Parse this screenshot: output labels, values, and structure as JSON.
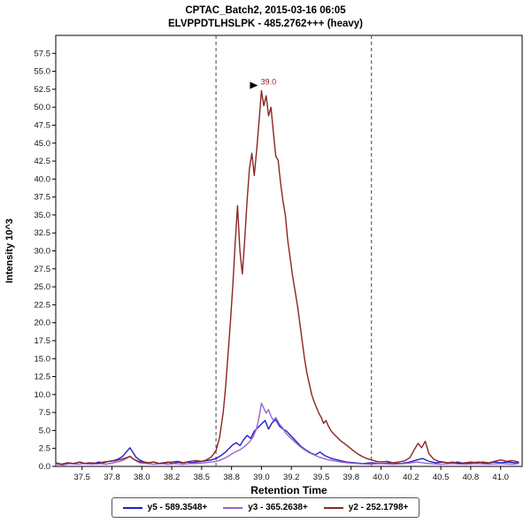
{
  "chart_data": {
    "type": "line",
    "title": "CPTAC_Batch2, 2015-03-16 06:05",
    "subtitle": "ELVPPDTLHSLPK - 485.2762+++ (heavy)",
    "xlabel": "Retention Time",
    "ylabel": "Intensity 10^3",
    "xlim": [
      37.28,
      41.18
    ],
    "ylim": [
      0,
      60
    ],
    "grid": false,
    "legend_position": "bottom",
    "y_ticks": {
      "min": 0.0,
      "max": 57.5,
      "step": 2.5
    },
    "x_ticks": [
      {
        "v": 37.5,
        "label": "37.5"
      },
      {
        "v": 37.75,
        "label": "37.8"
      },
      {
        "v": 38.0,
        "label": "38.0"
      },
      {
        "v": 38.25,
        "label": "38.2"
      },
      {
        "v": 38.5,
        "label": "38.5"
      },
      {
        "v": 38.75,
        "label": "38.8"
      },
      {
        "v": 39.0,
        "label": "39.0"
      },
      {
        "v": 39.25,
        "label": "39.2"
      },
      {
        "v": 39.5,
        "label": "39.5"
      },
      {
        "v": 39.75,
        "label": "39.8"
      },
      {
        "v": 40.0,
        "label": "40.0"
      },
      {
        "v": 40.25,
        "label": "40.2"
      },
      {
        "v": 40.5,
        "label": "40.5"
      },
      {
        "v": 40.75,
        "label": "40.8"
      },
      {
        "v": 41.0,
        "label": "41.0"
      }
    ],
    "integration_boundaries": [
      38.62,
      39.92
    ],
    "peak_annotation": {
      "x": 39.0,
      "y": 52.3,
      "label": "39.0",
      "color": "#8b2323"
    },
    "series": [
      {
        "name": "y5",
        "label": "y5 - 589.3548+",
        "color": "#2121cc",
        "points": [
          [
            37.28,
            0.4
          ],
          [
            37.33,
            0.3
          ],
          [
            37.38,
            0.5
          ],
          [
            37.43,
            0.4
          ],
          [
            37.48,
            0.6
          ],
          [
            37.52,
            0.4
          ],
          [
            37.56,
            0.5
          ],
          [
            37.6,
            0.4
          ],
          [
            37.64,
            0.6
          ],
          [
            37.68,
            0.5
          ],
          [
            37.72,
            0.7
          ],
          [
            37.76,
            0.8
          ],
          [
            37.8,
            1.0
          ],
          [
            37.84,
            1.4
          ],
          [
            37.87,
            2.0
          ],
          [
            37.9,
            2.6
          ],
          [
            37.92,
            2.1
          ],
          [
            37.95,
            1.3
          ],
          [
            37.98,
            0.9
          ],
          [
            38.02,
            0.6
          ],
          [
            38.06,
            0.5
          ],
          [
            38.1,
            0.6
          ],
          [
            38.14,
            0.4
          ],
          [
            38.18,
            0.5
          ],
          [
            38.22,
            0.6
          ],
          [
            38.26,
            0.4
          ],
          [
            38.3,
            0.6
          ],
          [
            38.34,
            0.5
          ],
          [
            38.38,
            0.6
          ],
          [
            38.42,
            0.5
          ],
          [
            38.46,
            0.6
          ],
          [
            38.5,
            0.7
          ],
          [
            38.54,
            0.8
          ],
          [
            38.58,
            0.9
          ],
          [
            38.62,
            1.1
          ],
          [
            38.66,
            1.5
          ],
          [
            38.7,
            2.0
          ],
          [
            38.73,
            2.5
          ],
          [
            38.76,
            3.0
          ],
          [
            38.79,
            3.3
          ],
          [
            38.82,
            2.9
          ],
          [
            38.85,
            3.7
          ],
          [
            38.88,
            4.3
          ],
          [
            38.91,
            3.9
          ],
          [
            38.94,
            4.9
          ],
          [
            38.97,
            5.4
          ],
          [
            39.0,
            5.9
          ],
          [
            39.03,
            6.4
          ],
          [
            39.06,
            5.2
          ],
          [
            39.09,
            6.1
          ],
          [
            39.12,
            6.5
          ],
          [
            39.15,
            5.6
          ],
          [
            39.18,
            5.2
          ],
          [
            39.21,
            4.9
          ],
          [
            39.25,
            4.2
          ],
          [
            39.29,
            3.5
          ],
          [
            39.33,
            2.8
          ],
          [
            39.37,
            2.3
          ],
          [
            39.41,
            1.9
          ],
          [
            39.45,
            1.6
          ],
          [
            39.49,
            2.0
          ],
          [
            39.53,
            1.5
          ],
          [
            39.57,
            1.2
          ],
          [
            39.61,
            1.0
          ],
          [
            39.66,
            0.8
          ],
          [
            39.71,
            0.6
          ],
          [
            39.78,
            0.5
          ],
          [
            39.85,
            0.4
          ],
          [
            39.92,
            0.5
          ],
          [
            40.0,
            0.4
          ],
          [
            40.08,
            0.5
          ],
          [
            40.16,
            0.4
          ],
          [
            40.24,
            0.6
          ],
          [
            40.3,
            0.9
          ],
          [
            40.35,
            1.1
          ],
          [
            40.4,
            0.7
          ],
          [
            40.46,
            0.5
          ],
          [
            40.52,
            0.6
          ],
          [
            40.58,
            0.4
          ],
          [
            40.64,
            0.6
          ],
          [
            40.7,
            0.4
          ],
          [
            40.76,
            0.5
          ],
          [
            40.82,
            0.6
          ],
          [
            40.88,
            0.4
          ],
          [
            40.94,
            0.6
          ],
          [
            41.0,
            0.5
          ],
          [
            41.06,
            0.6
          ],
          [
            41.12,
            0.5
          ],
          [
            41.15,
            0.5
          ]
        ]
      },
      {
        "name": "y3",
        "label": "y3 - 365.2638+",
        "color": "#9966cc",
        "points": [
          [
            37.28,
            0.3
          ],
          [
            37.34,
            0.2
          ],
          [
            37.4,
            0.4
          ],
          [
            37.46,
            0.3
          ],
          [
            37.52,
            0.4
          ],
          [
            37.58,
            0.3
          ],
          [
            37.64,
            0.4
          ],
          [
            37.7,
            0.3
          ],
          [
            37.76,
            0.5
          ],
          [
            37.82,
            0.7
          ],
          [
            37.86,
            1.0
          ],
          [
            37.9,
            1.4
          ],
          [
            37.94,
            0.9
          ],
          [
            37.98,
            0.5
          ],
          [
            38.04,
            0.4
          ],
          [
            38.1,
            0.3
          ],
          [
            38.16,
            0.4
          ],
          [
            38.22,
            0.3
          ],
          [
            38.28,
            0.4
          ],
          [
            38.34,
            0.3
          ],
          [
            38.4,
            0.4
          ],
          [
            38.46,
            0.4
          ],
          [
            38.52,
            0.5
          ],
          [
            38.58,
            0.6
          ],
          [
            38.62,
            0.7
          ],
          [
            38.66,
            0.9
          ],
          [
            38.7,
            1.2
          ],
          [
            38.74,
            1.6
          ],
          [
            38.78,
            2.0
          ],
          [
            38.82,
            2.3
          ],
          [
            38.86,
            2.8
          ],
          [
            38.9,
            3.4
          ],
          [
            38.93,
            4.1
          ],
          [
            38.96,
            5.3
          ],
          [
            38.98,
            6.8
          ],
          [
            39.0,
            8.8
          ],
          [
            39.02,
            8.1
          ],
          [
            39.04,
            7.4
          ],
          [
            39.06,
            7.9
          ],
          [
            39.08,
            7.0
          ],
          [
            39.1,
            6.4
          ],
          [
            39.12,
            6.8
          ],
          [
            39.15,
            5.9
          ],
          [
            39.18,
            5.3
          ],
          [
            39.2,
            4.7
          ],
          [
            39.24,
            4.0
          ],
          [
            39.28,
            3.4
          ],
          [
            39.32,
            2.8
          ],
          [
            39.36,
            2.3
          ],
          [
            39.4,
            1.9
          ],
          [
            39.44,
            1.6
          ],
          [
            39.48,
            1.3
          ],
          [
            39.52,
            1.1
          ],
          [
            39.56,
            0.9
          ],
          [
            39.6,
            0.8
          ],
          [
            39.66,
            0.6
          ],
          [
            39.72,
            0.5
          ],
          [
            39.8,
            0.4
          ],
          [
            39.9,
            0.3
          ],
          [
            40.0,
            0.4
          ],
          [
            40.1,
            0.3
          ],
          [
            40.2,
            0.4
          ],
          [
            40.3,
            0.6
          ],
          [
            40.35,
            0.5
          ],
          [
            40.4,
            0.4
          ],
          [
            40.5,
            0.3
          ],
          [
            40.6,
            0.4
          ],
          [
            40.7,
            0.3
          ],
          [
            40.8,
            0.4
          ],
          [
            40.9,
            0.3
          ],
          [
            41.0,
            0.4
          ],
          [
            41.1,
            0.3
          ],
          [
            41.15,
            0.4
          ]
        ]
      },
      {
        "name": "y2",
        "label": "y2 - 252.1798+",
        "color": "#8b2626",
        "points": [
          [
            37.28,
            0.5
          ],
          [
            37.33,
            0.3
          ],
          [
            37.38,
            0.5
          ],
          [
            37.43,
            0.4
          ],
          [
            37.48,
            0.6
          ],
          [
            37.53,
            0.4
          ],
          [
            37.58,
            0.5
          ],
          [
            37.63,
            0.4
          ],
          [
            37.68,
            0.6
          ],
          [
            37.73,
            0.7
          ],
          [
            37.78,
            0.8
          ],
          [
            37.83,
            1.0
          ],
          [
            37.87,
            1.2
          ],
          [
            37.9,
            1.4
          ],
          [
            37.93,
            1.0
          ],
          [
            37.97,
            0.7
          ],
          [
            38.0,
            0.6
          ],
          [
            38.05,
            0.5
          ],
          [
            38.1,
            0.6
          ],
          [
            38.15,
            0.4
          ],
          [
            38.2,
            0.5
          ],
          [
            38.25,
            0.6
          ],
          [
            38.3,
            0.7
          ],
          [
            38.35,
            0.5
          ],
          [
            38.4,
            0.7
          ],
          [
            38.45,
            0.8
          ],
          [
            38.5,
            0.7
          ],
          [
            38.54,
            0.9
          ],
          [
            38.58,
            1.3
          ],
          [
            38.62,
            2.2
          ],
          [
            38.65,
            4.0
          ],
          [
            38.68,
            7.5
          ],
          [
            38.7,
            11.0
          ],
          [
            38.72,
            15.5
          ],
          [
            38.74,
            20.0
          ],
          [
            38.76,
            25.0
          ],
          [
            38.78,
            31.0
          ],
          [
            38.8,
            36.3
          ],
          [
            38.82,
            30.0
          ],
          [
            38.84,
            26.8
          ],
          [
            38.86,
            31.5
          ],
          [
            38.88,
            37.0
          ],
          [
            38.9,
            41.5
          ],
          [
            38.92,
            43.6
          ],
          [
            38.94,
            40.5
          ],
          [
            38.96,
            44.0
          ],
          [
            38.98,
            48.0
          ],
          [
            39.0,
            52.3
          ],
          [
            39.02,
            50.2
          ],
          [
            39.04,
            51.6
          ],
          [
            39.06,
            48.8
          ],
          [
            39.08,
            50.0
          ],
          [
            39.1,
            46.5
          ],
          [
            39.12,
            43.2
          ],
          [
            39.14,
            42.6
          ],
          [
            39.16,
            39.5
          ],
          [
            39.18,
            37.0
          ],
          [
            39.2,
            35.0
          ],
          [
            39.22,
            31.5
          ],
          [
            39.24,
            29.0
          ],
          [
            39.26,
            26.5
          ],
          [
            39.28,
            24.5
          ],
          [
            39.3,
            22.5
          ],
          [
            39.32,
            20.0
          ],
          [
            39.34,
            17.5
          ],
          [
            39.36,
            15.0
          ],
          [
            39.38,
            13.0
          ],
          [
            39.4,
            11.5
          ],
          [
            39.42,
            10.0
          ],
          [
            39.44,
            9.0
          ],
          [
            39.46,
            8.2
          ],
          [
            39.48,
            7.4
          ],
          [
            39.5,
            6.8
          ],
          [
            39.52,
            6.0
          ],
          [
            39.54,
            6.4
          ],
          [
            39.56,
            5.6
          ],
          [
            39.58,
            5.0
          ],
          [
            39.6,
            4.6
          ],
          [
            39.63,
            4.1
          ],
          [
            39.66,
            3.6
          ],
          [
            39.7,
            3.1
          ],
          [
            39.73,
            2.7
          ],
          [
            39.76,
            2.3
          ],
          [
            39.8,
            1.8
          ],
          [
            39.84,
            1.4
          ],
          [
            39.88,
            1.1
          ],
          [
            39.92,
            0.9
          ],
          [
            39.96,
            0.7
          ],
          [
            40.0,
            0.6
          ],
          [
            40.05,
            0.7
          ],
          [
            40.1,
            0.5
          ],
          [
            40.15,
            0.6
          ],
          [
            40.2,
            0.8
          ],
          [
            40.24,
            1.2
          ],
          [
            40.28,
            2.4
          ],
          [
            40.31,
            3.2
          ],
          [
            40.34,
            2.6
          ],
          [
            40.37,
            3.5
          ],
          [
            40.4,
            1.8
          ],
          [
            40.44,
            1.0
          ],
          [
            40.48,
            0.7
          ],
          [
            40.52,
            0.6
          ],
          [
            40.56,
            0.5
          ],
          [
            40.6,
            0.6
          ],
          [
            40.65,
            0.4
          ],
          [
            40.7,
            0.5
          ],
          [
            40.75,
            0.6
          ],
          [
            40.8,
            0.5
          ],
          [
            40.85,
            0.6
          ],
          [
            40.9,
            0.5
          ],
          [
            40.95,
            0.7
          ],
          [
            41.0,
            0.9
          ],
          [
            41.05,
            0.7
          ],
          [
            41.1,
            0.8
          ],
          [
            41.15,
            0.6
          ]
        ]
      }
    ]
  }
}
